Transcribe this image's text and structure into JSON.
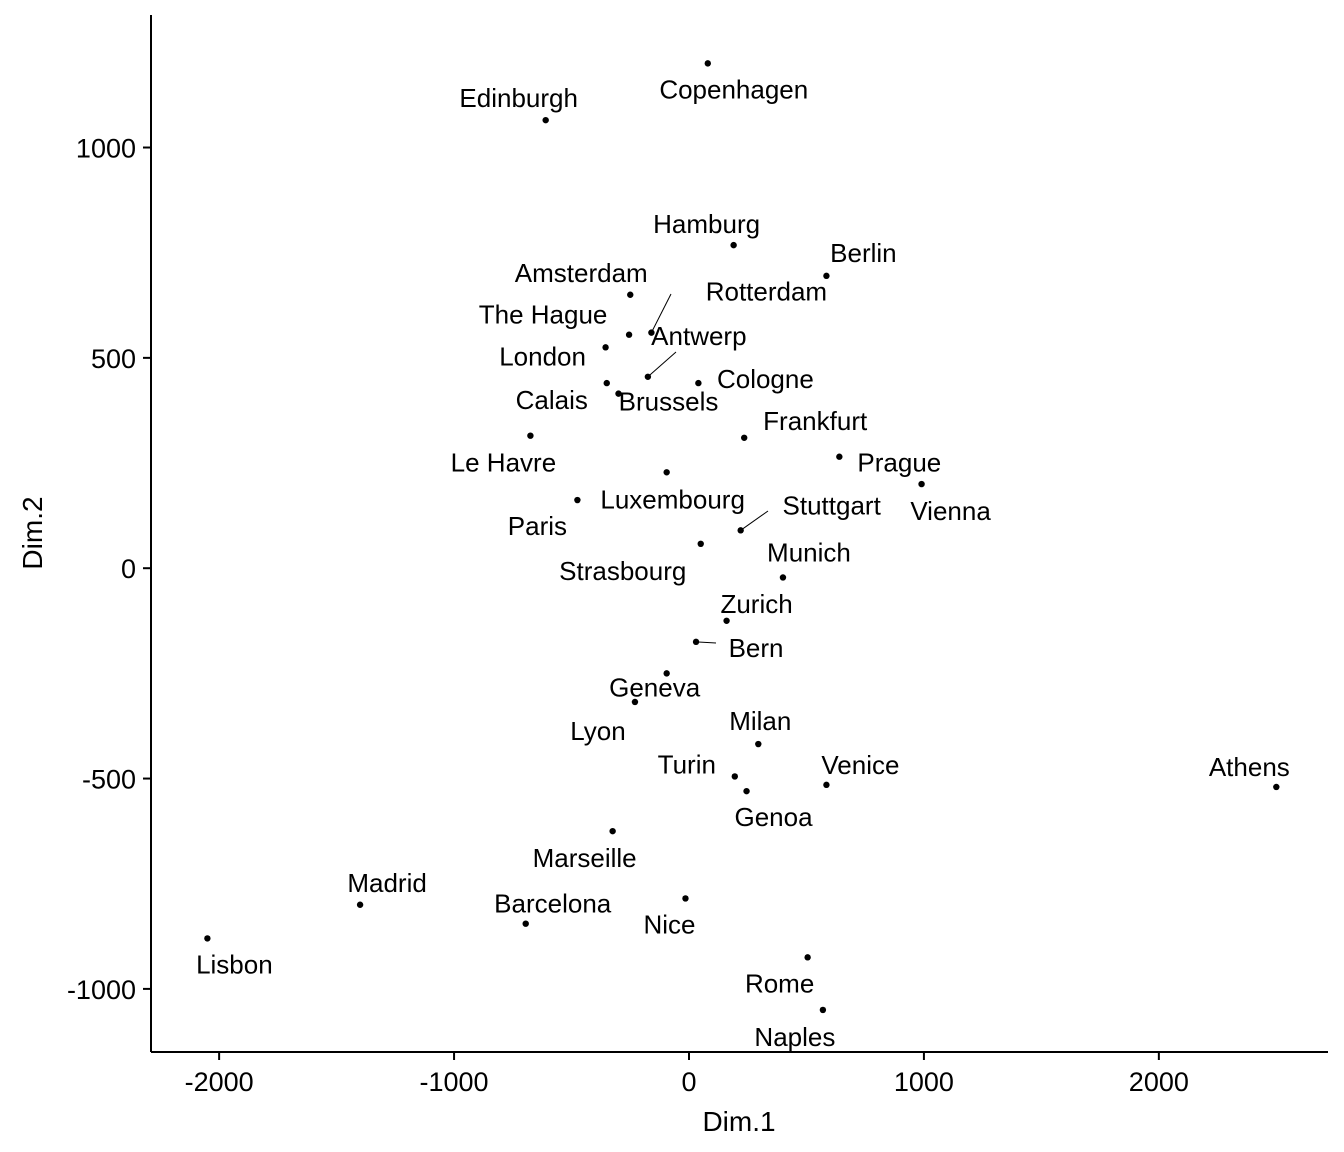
{
  "chart_data": {
    "type": "scatter",
    "xlabel": "Dim.1",
    "ylabel": "Dim.2",
    "xlim": [
      -2290,
      2720
    ],
    "ylim": [
      -1150,
      1315
    ],
    "xticks": [
      -2000,
      -1000,
      0,
      1000,
      2000
    ],
    "yticks": [
      1000,
      500,
      0,
      -500,
      -1000
    ],
    "grid": false,
    "legend": "none",
    "point_color": "#000000",
    "points": [
      {
        "label": "Copenhagen",
        "x": 80,
        "y": 1200
      },
      {
        "label": "Edinburgh",
        "x": -610,
        "y": 1065
      },
      {
        "label": "Hamburg",
        "x": 190,
        "y": 768
      },
      {
        "label": "Berlin",
        "x": 585,
        "y": 695
      },
      {
        "label": "Amsterdam",
        "x": -250,
        "y": 650
      },
      {
        "label": "Rotterdam",
        "x": -160,
        "y": 560
      },
      {
        "label": "The Hague",
        "x": -255,
        "y": 555
      },
      {
        "label": "London",
        "x": -355,
        "y": 525
      },
      {
        "label": "Antwerp",
        "x": -175,
        "y": 455
      },
      {
        "label": "Cologne",
        "x": 40,
        "y": 440
      },
      {
        "label": "Calais",
        "x": -350,
        "y": 440
      },
      {
        "label": "Brussels",
        "x": -300,
        "y": 415
      },
      {
        "label": "Le Havre",
        "x": -675,
        "y": 315
      },
      {
        "label": "Frankfurt",
        "x": 235,
        "y": 310
      },
      {
        "label": "Prague",
        "x": 640,
        "y": 265
      },
      {
        "label": "Luxembourg",
        "x": -95,
        "y": 228
      },
      {
        "label": "Vienna",
        "x": 990,
        "y": 200
      },
      {
        "label": "Paris",
        "x": -475,
        "y": 162
      },
      {
        "label": "Stuttgart",
        "x": 220,
        "y": 90
      },
      {
        "label": "Strasbourg",
        "x": 50,
        "y": 58
      },
      {
        "label": "Munich",
        "x": 400,
        "y": -22
      },
      {
        "label": "Zurich",
        "x": 160,
        "y": -125
      },
      {
        "label": "Bern",
        "x": 30,
        "y": -175
      },
      {
        "label": "Geneva",
        "x": -95,
        "y": -250
      },
      {
        "label": "Lyon",
        "x": -230,
        "y": -318
      },
      {
        "label": "Milan",
        "x": 295,
        "y": -418
      },
      {
        "label": "Turin",
        "x": 195,
        "y": -495
      },
      {
        "label": "Venice",
        "x": 585,
        "y": -515
      },
      {
        "label": "Genoa",
        "x": 245,
        "y": -530
      },
      {
        "label": "Athens",
        "x": 2500,
        "y": -520
      },
      {
        "label": "Marseille",
        "x": -325,
        "y": -625
      },
      {
        "label": "Madrid",
        "x": -1400,
        "y": -800
      },
      {
        "label": "Nice",
        "x": -15,
        "y": -785
      },
      {
        "label": "Barcelona",
        "x": -695,
        "y": -845
      },
      {
        "label": "Lisbon",
        "x": -2050,
        "y": -880
      },
      {
        "label": "Rome",
        "x": 505,
        "y": -925
      },
      {
        "label": "Naples",
        "x": 570,
        "y": -1050
      }
    ]
  }
}
